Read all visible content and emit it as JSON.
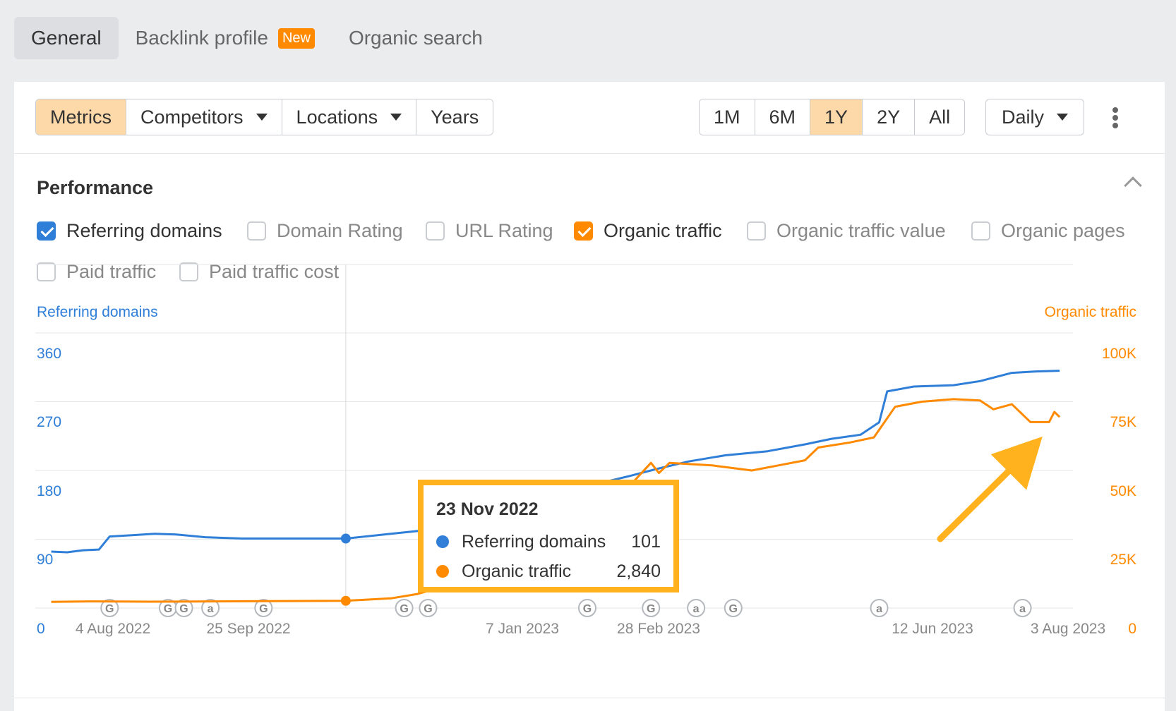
{
  "top_tabs": [
    {
      "label": "General"
    },
    {
      "label": "Backlink profile",
      "badge": "New"
    },
    {
      "label": "Organic search"
    }
  ],
  "toolbar": {
    "view_group": [
      "Metrics",
      "Competitors",
      "Locations",
      "Years"
    ],
    "range_group": [
      "1M",
      "6M",
      "1Y",
      "2Y",
      "All"
    ],
    "interval": "Daily"
  },
  "performance": {
    "title": "Performance",
    "metrics": [
      {
        "label": "Referring domains",
        "checked": true
      },
      {
        "label": "Domain Rating",
        "checked": false
      },
      {
        "label": "URL Rating",
        "checked": false
      },
      {
        "label": "Organic traffic",
        "checked": true
      },
      {
        "label": "Organic traffic value",
        "checked": false
      },
      {
        "label": "Organic pages",
        "checked": false
      },
      {
        "label": "Paid traffic",
        "checked": false
      },
      {
        "label": "Paid traffic cost",
        "checked": false
      }
    ]
  },
  "colors": {
    "referring_domains": "#2f7ed8",
    "organic_traffic": "#ff8a00",
    "accent": "#fdd9a9",
    "tooltip_border": "#ffb21e"
  },
  "chart_data": {
    "type": "line",
    "left_axis": {
      "label": "Referring domains",
      "ticks": [
        "0",
        "90",
        "180",
        "270",
        "360"
      ],
      "range": [
        0,
        400
      ]
    },
    "right_axis": {
      "label": "Organic traffic",
      "ticks": [
        "0",
        "25K",
        "50K",
        "75K",
        "100K"
      ],
      "range": [
        0,
        108000
      ]
    },
    "x_ticks": [
      "4 Aug 2022",
      "25 Sep 2022",
      "7 Jan 2023",
      "28 Feb 2023",
      "12 Jun 2023",
      "3 Aug 2023"
    ],
    "x_range": [
      "2022-07-29",
      "2023-08-24"
    ],
    "series": [
      {
        "name": "Referring domains",
        "axis": "left",
        "points": [
          [
            "2022-08-04",
            82
          ],
          [
            "2022-08-10",
            81
          ],
          [
            "2022-08-16",
            84
          ],
          [
            "2022-08-22",
            85
          ],
          [
            "2022-08-26",
            104
          ],
          [
            "2022-09-04",
            106
          ],
          [
            "2022-09-12",
            108
          ],
          [
            "2022-09-20",
            107
          ],
          [
            "2022-10-01",
            103
          ],
          [
            "2022-10-15",
            101
          ],
          [
            "2022-11-01",
            101
          ],
          [
            "2022-11-15",
            101
          ],
          [
            "2022-11-23",
            101
          ],
          [
            "2022-12-10",
            108
          ],
          [
            "2022-12-25",
            114
          ],
          [
            "2023-01-10",
            122
          ],
          [
            "2023-01-25",
            135
          ],
          [
            "2023-02-10",
            160
          ],
          [
            "2023-02-25",
            180
          ],
          [
            "2023-03-10",
            192
          ],
          [
            "2023-03-20",
            202
          ],
          [
            "2023-04-01",
            213
          ],
          [
            "2023-04-15",
            222
          ],
          [
            "2023-05-01",
            228
          ],
          [
            "2023-05-15",
            238
          ],
          [
            "2023-05-25",
            246
          ],
          [
            "2023-06-05",
            252
          ],
          [
            "2023-06-12",
            270
          ],
          [
            "2023-06-15",
            315
          ],
          [
            "2023-06-25",
            322
          ],
          [
            "2023-07-10",
            324
          ],
          [
            "2023-07-20",
            330
          ],
          [
            "2023-08-01",
            342
          ],
          [
            "2023-08-10",
            344
          ],
          [
            "2023-08-19",
            345
          ]
        ]
      },
      {
        "name": "Organic traffic",
        "axis": "right",
        "points": [
          [
            "2022-08-04",
            2400
          ],
          [
            "2022-08-20",
            2600
          ],
          [
            "2022-09-10",
            2500
          ],
          [
            "2022-10-05",
            2600
          ],
          [
            "2022-10-25",
            2700
          ],
          [
            "2022-11-23",
            2840
          ],
          [
            "2022-12-10",
            3800
          ],
          [
            "2022-12-20",
            5500
          ],
          [
            "2023-01-01",
            9000
          ],
          [
            "2023-01-15",
            14000
          ],
          [
            "2023-02-01",
            22000
          ],
          [
            "2023-02-15",
            30000
          ],
          [
            "2023-02-28",
            38000
          ],
          [
            "2023-03-10",
            48000
          ],
          [
            "2023-03-18",
            57000
          ],
          [
            "2023-03-21",
            53000
          ],
          [
            "2023-03-25",
            57000
          ],
          [
            "2023-04-10",
            56000
          ],
          [
            "2023-04-25",
            54000
          ],
          [
            "2023-05-05",
            56000
          ],
          [
            "2023-05-15",
            58000
          ],
          [
            "2023-05-20",
            63000
          ],
          [
            "2023-06-01",
            65000
          ],
          [
            "2023-06-10",
            67000
          ],
          [
            "2023-06-18",
            79000
          ],
          [
            "2023-06-28",
            81000
          ],
          [
            "2023-07-10",
            82000
          ],
          [
            "2023-07-20",
            81500
          ],
          [
            "2023-07-25",
            78000
          ],
          [
            "2023-08-01",
            80000
          ],
          [
            "2023-08-08",
            73000
          ],
          [
            "2023-08-15",
            73000
          ],
          [
            "2023-08-17",
            77000
          ],
          [
            "2023-08-19",
            75000
          ]
        ]
      }
    ],
    "annotations": [
      {
        "date": "2022-08-26",
        "label": "G"
      },
      {
        "date": "2022-09-17",
        "label": "G"
      },
      {
        "date": "2022-09-23",
        "label": "G"
      },
      {
        "date": "2022-10-03",
        "label": "a"
      },
      {
        "date": "2022-10-23",
        "label": "G"
      },
      {
        "date": "2022-12-15",
        "label": "G"
      },
      {
        "date": "2022-12-24",
        "label": "G"
      },
      {
        "date": "2023-02-22",
        "label": "G"
      },
      {
        "date": "2023-03-18",
        "label": "G"
      },
      {
        "date": "2023-04-04",
        "label": "a"
      },
      {
        "date": "2023-04-18",
        "label": "G"
      },
      {
        "date": "2023-06-12",
        "label": "a"
      },
      {
        "date": "2023-08-05",
        "label": "a"
      }
    ],
    "hover": {
      "date": "2022-11-23",
      "label": "23 Nov 2022",
      "referring_domains": "101",
      "organic_traffic": "2,840"
    }
  }
}
